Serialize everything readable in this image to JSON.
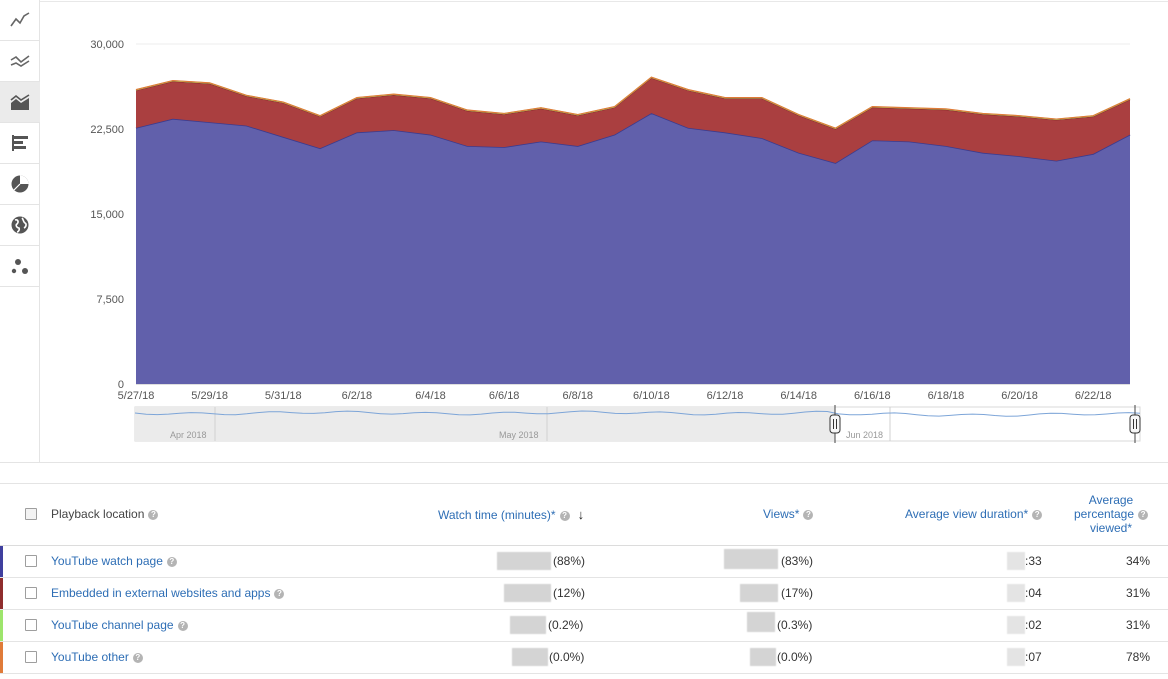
{
  "toolbar": {
    "icons": [
      "line-chart-icon",
      "multi-line-chart-icon",
      "stacked-area-chart-icon",
      "bar-chart-icon",
      "pie-chart-icon",
      "globe-map-icon",
      "bubble-chart-icon"
    ],
    "active_index": 2
  },
  "chart_data": {
    "type": "area",
    "stacked": true,
    "x": [
      "5/27/18",
      "5/28/18",
      "5/29/18",
      "5/30/18",
      "5/31/18",
      "6/1/18",
      "6/2/18",
      "6/3/18",
      "6/4/18",
      "6/5/18",
      "6/6/18",
      "6/7/18",
      "6/8/18",
      "6/9/18",
      "6/10/18",
      "6/11/18",
      "6/12/18",
      "6/13/18",
      "6/14/18",
      "6/15/18",
      "6/16/18",
      "6/17/18",
      "6/18/18",
      "6/19/18",
      "6/20/18",
      "6/21/18",
      "6/22/18",
      "6/23/18"
    ],
    "x_tick_labels": [
      "5/27/18",
      "5/29/18",
      "5/31/18",
      "6/2/18",
      "6/4/18",
      "6/6/18",
      "6/8/18",
      "6/10/18",
      "6/12/18",
      "6/14/18",
      "6/16/18",
      "6/18/18",
      "6/20/18",
      "6/22/18"
    ],
    "y_tick_labels": [
      "0",
      "7,500",
      "15,000",
      "22,500",
      "30,000"
    ],
    "ylim": [
      0,
      30000
    ],
    "series": [
      {
        "name": "YouTube watch page",
        "color": "#6160ab",
        "values": [
          22600,
          23400,
          23100,
          22800,
          21800,
          20800,
          22200,
          22400,
          22000,
          21000,
          20900,
          21400,
          21000,
          22000,
          23900,
          22600,
          22200,
          21700,
          20400,
          19500,
          21500,
          21400,
          21000,
          20400,
          20100,
          19700,
          20300,
          22000
        ]
      },
      {
        "name": "Embedded in external websites and apps",
        "color": "#aa3f40",
        "values": [
          3300,
          3300,
          3400,
          2600,
          3000,
          2800,
          3000,
          3100,
          3200,
          3100,
          2900,
          2900,
          2700,
          2400,
          3100,
          3300,
          3000,
          3500,
          3300,
          3000,
          2900,
          2900,
          3200,
          3400,
          3500,
          3600,
          3300,
          3100
        ]
      },
      {
        "name": "YouTube channel page",
        "color": "#9de56c",
        "values": [
          60,
          60,
          60,
          60,
          60,
          60,
          60,
          60,
          60,
          60,
          60,
          60,
          60,
          60,
          60,
          60,
          60,
          60,
          60,
          60,
          60,
          60,
          60,
          60,
          60,
          60,
          60,
          60
        ]
      },
      {
        "name": "YouTube other",
        "color": "#e07b39",
        "values": [
          15,
          15,
          15,
          15,
          15,
          15,
          15,
          15,
          15,
          15,
          15,
          15,
          15,
          15,
          15,
          15,
          15,
          15,
          15,
          15,
          15,
          15,
          15,
          15,
          15,
          15,
          15,
          15
        ]
      }
    ],
    "navigator": {
      "labels": [
        "Apr 2018",
        "May 2018",
        "Jun 2018"
      ]
    }
  },
  "table": {
    "headers": {
      "playback_location": "Playback location",
      "watch_time": "Watch time (minutes)*",
      "views": "Views*",
      "avg_view_duration": "Average view duration*",
      "avg_pct_line1": "Average",
      "avg_pct_line2": "percentage",
      "avg_pct_line3": "viewed*"
    },
    "rows": [
      {
        "name": "YouTube watch page",
        "color": "#3f3f9e",
        "watch_pct": "(88%)",
        "views_pct": "(83%)",
        "duration": ":33",
        "avg_pct": "34%"
      },
      {
        "name": "Embedded in external websites and apps",
        "color": "#8f2d2d",
        "watch_pct": "(12%)",
        "views_pct": "(17%)",
        "duration": ":04",
        "avg_pct": "31%"
      },
      {
        "name": "YouTube channel page",
        "color": "#9de56c",
        "watch_pct": "(0.2%)",
        "views_pct": "(0.3%)",
        "duration": ":02",
        "avg_pct": "31%"
      },
      {
        "name": "YouTube other",
        "color": "#e07b39",
        "watch_pct": "(0.0%)",
        "views_pct": "(0.0%)",
        "duration": ":07",
        "avg_pct": "78%"
      }
    ]
  }
}
